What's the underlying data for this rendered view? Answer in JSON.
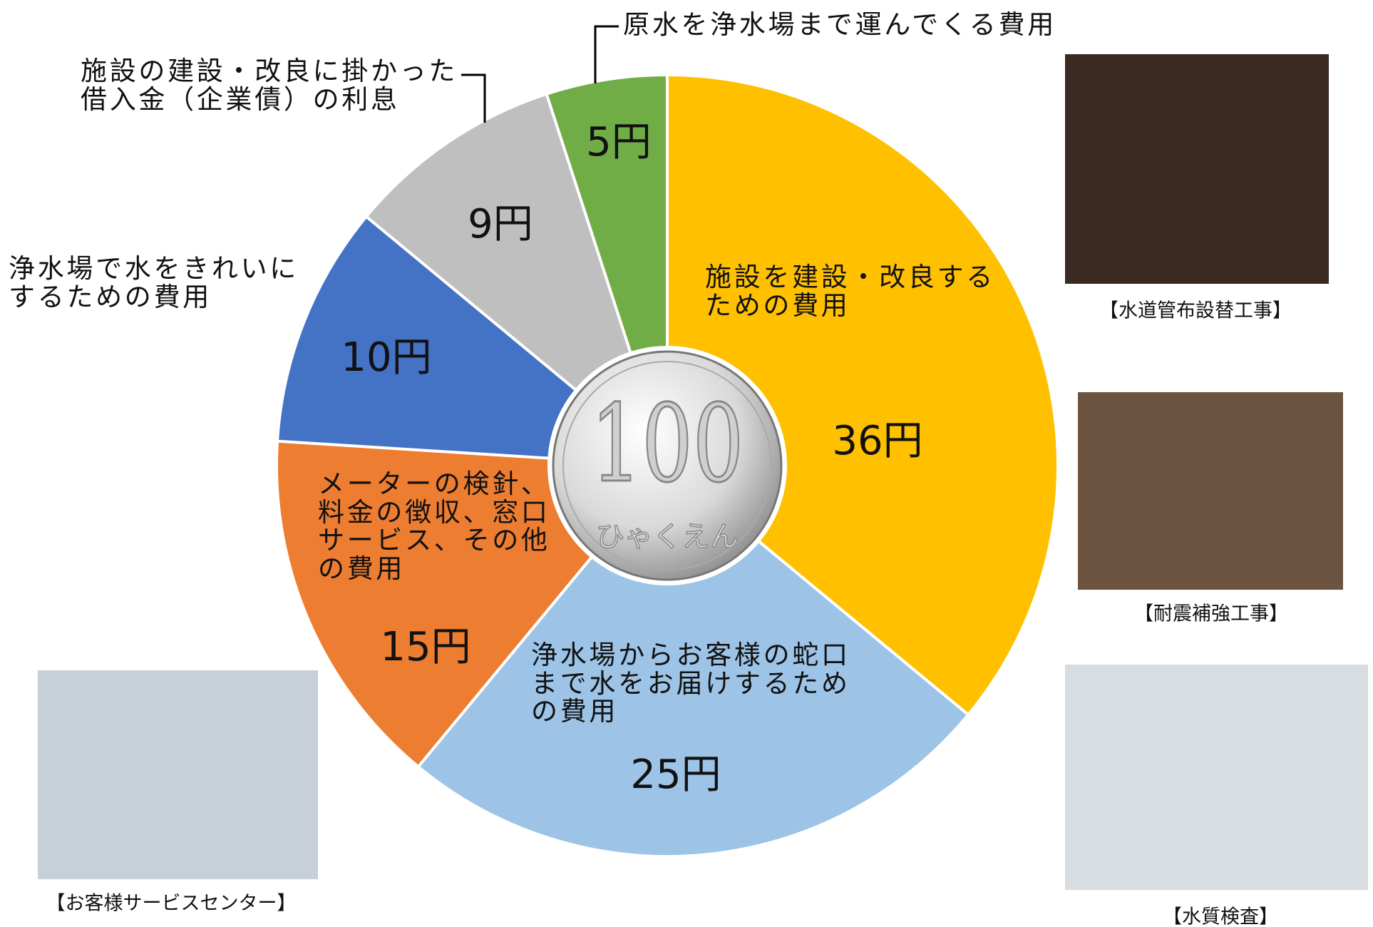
{
  "chart_data": {
    "type": "pie",
    "categories": [
      "施設を建設・改良するための費用",
      "浄水場からお客様の蛇口まで水をお届けするための費用",
      "メーターの検針、料金の徴収、窓口サービス、その他の費用",
      "浄水場で水をきれいにするための費用",
      "施設の建設・改良に掛かった借入金（企業債）の利息",
      "原水を浄水場まで運んでくる費用"
    ],
    "values": [
      36,
      25,
      15,
      10,
      9,
      5
    ],
    "value_labels": [
      "36円",
      "25円",
      "15円",
      "10円",
      "9円",
      "5円"
    ],
    "colors": [
      "#ffc000",
      "#9dc3e6",
      "#ed7d31",
      "#4472c4",
      "#bfbfbf",
      "#70ad47"
    ],
    "center": {
      "number": "100",
      "reading": "ひゃくえん"
    }
  },
  "photos": [
    {
      "caption": "【水道管布設替工事】"
    },
    {
      "caption": "【耐震補強工事】"
    },
    {
      "caption": "【水質検査】"
    },
    {
      "caption": "【お客様サービスセンター】"
    }
  ]
}
